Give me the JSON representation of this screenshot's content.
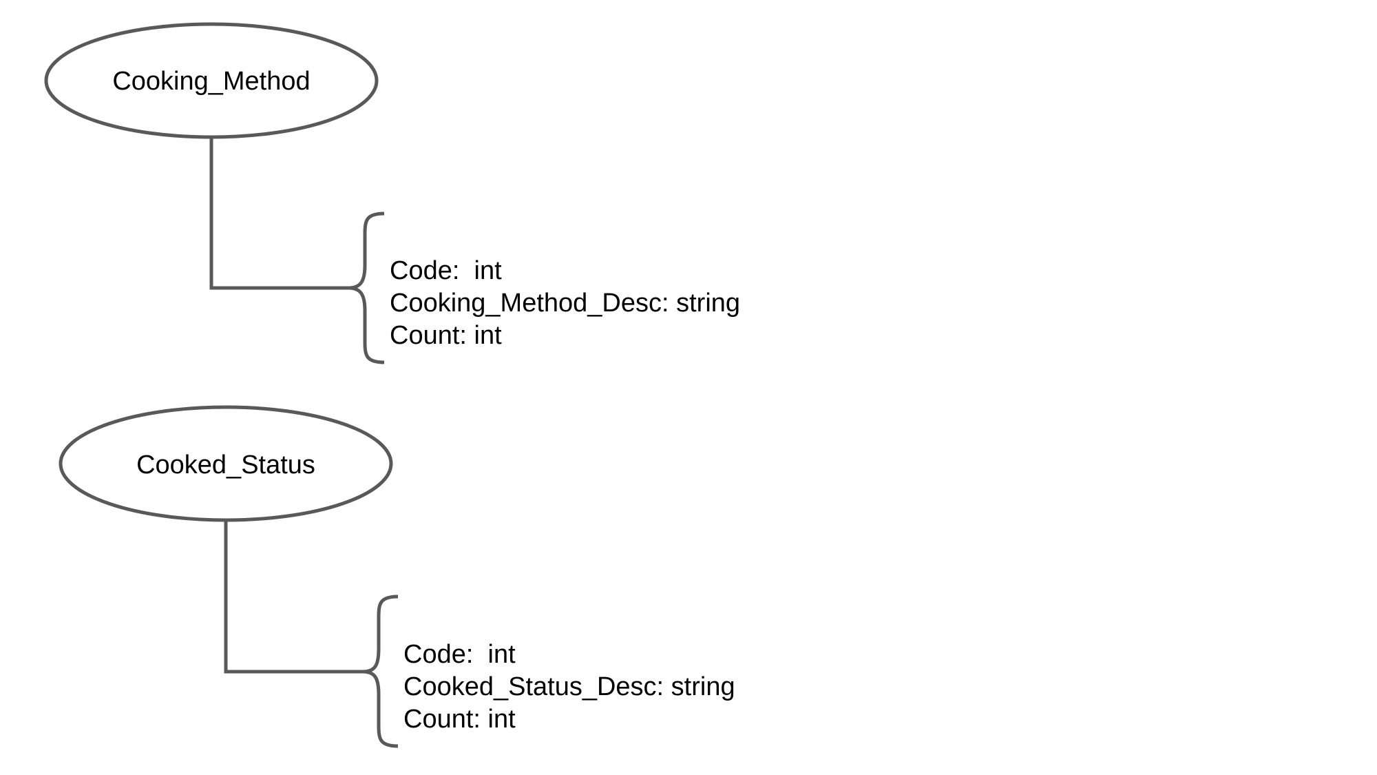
{
  "diagram": {
    "entities": [
      {
        "name": "Cooking_Method",
        "attributes": [
          "Code:  int",
          "Cooking_Method_Desc: string",
          "Count: int"
        ]
      },
      {
        "name": "Cooked_Status",
        "attributes": [
          "Code:  int",
          "Cooked_Status_Desc: string",
          "Count: int"
        ]
      }
    ],
    "colors": {
      "stroke": "#595959",
      "text": "#000000",
      "background": "#ffffff"
    }
  }
}
